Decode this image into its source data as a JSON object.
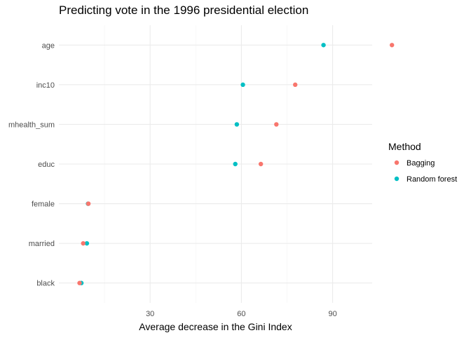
{
  "chart_data": {
    "type": "scatter",
    "title": "Predicting vote in the 1996 presidential election",
    "xlabel": "Average decrease in the Gini Index",
    "ylabel": "",
    "categories": [
      "age",
      "inc10",
      "mhealth_sum",
      "educ",
      "female",
      "married",
      "black"
    ],
    "xlim": [
      0,
      103
    ],
    "xticks": [
      30,
      60,
      90
    ],
    "x_minor_ticks": [
      15,
      45,
      75,
      105
    ],
    "grid": true,
    "series": [
      {
        "name": "Bagging",
        "color": "#F8766D",
        "values": [
          109.5,
          77.7,
          71.5,
          66.4,
          9.7,
          8.0,
          6.8
        ]
      },
      {
        "name": "Random forest",
        "color": "#00BFC4",
        "values": [
          87.0,
          60.5,
          58.5,
          58.0,
          9.6,
          9.2,
          7.4
        ]
      }
    ],
    "legend": {
      "title": "Method",
      "position": "right"
    }
  }
}
